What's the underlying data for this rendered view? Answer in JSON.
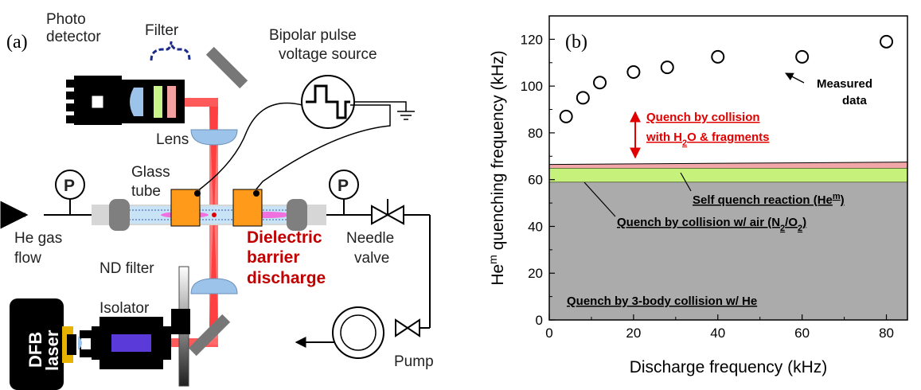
{
  "panel_a": {
    "panel_label": "(a)",
    "photo_detector": [
      "Photo",
      "detector"
    ],
    "filter": "Filter",
    "pulse_source": [
      "Bipolar pulse",
      "voltage source"
    ],
    "lens": "Lens",
    "glass_tube": [
      "Glass",
      "tube"
    ],
    "pressure_gauge": "P",
    "he_gas_flow": [
      "He gas",
      "flow"
    ],
    "dbd": [
      "Dielectric",
      "barrier",
      "discharge"
    ],
    "needle_valve": [
      "Needle",
      "valve"
    ],
    "nd_filter": "ND filter",
    "isolator": "Isolator",
    "dfb_laser": [
      "DFB",
      "laser"
    ],
    "pump": "Pump"
  },
  "panel_b": {
    "panel_label": "(b)",
    "annotations": {
      "measured": [
        "Measured",
        "data"
      ],
      "collision_h2o": [
        "Quench by collision",
        "with H",
        "2",
        "O & fragments"
      ],
      "self_quench": [
        "Self quench reaction (He",
        "m",
        ")"
      ],
      "air": [
        "Quench by collision w/ air (N",
        "2",
        "/O",
        "2",
        ")"
      ],
      "three_body": "Quench by 3-body collision w/ He"
    }
  },
  "chart_data": {
    "type": "scatter",
    "xlabel": "Discharge frequency (kHz)",
    "ylabel": [
      "He",
      "m",
      " quenching frequency (kHz)"
    ],
    "xlim": [
      0,
      85
    ],
    "ylim": [
      0,
      130
    ],
    "xticks": [
      0,
      20,
      40,
      60,
      80
    ],
    "yticks": [
      0,
      20,
      40,
      60,
      80,
      100,
      120
    ],
    "grid": false,
    "series": [
      {
        "name": "Measured data",
        "x": [
          4,
          8,
          12,
          20,
          28,
          40,
          60,
          80
        ],
        "y": [
          87,
          95,
          101.5,
          106,
          108,
          112.5,
          112.5,
          119
        ]
      }
    ],
    "bands": [
      {
        "name": "Quench by 3-body collision w/ He",
        "from": 0,
        "to": 59,
        "color": "#ababab"
      },
      {
        "name": "Quench by collision w/ air (N2/O2)",
        "from": 59,
        "to": 65,
        "color": "#c6f27c"
      },
      {
        "name": "Self quench reaction (Hem)",
        "from": 65,
        "to_start": 66.5,
        "to_end": 67.5,
        "color": "#f1a7a7"
      }
    ]
  }
}
